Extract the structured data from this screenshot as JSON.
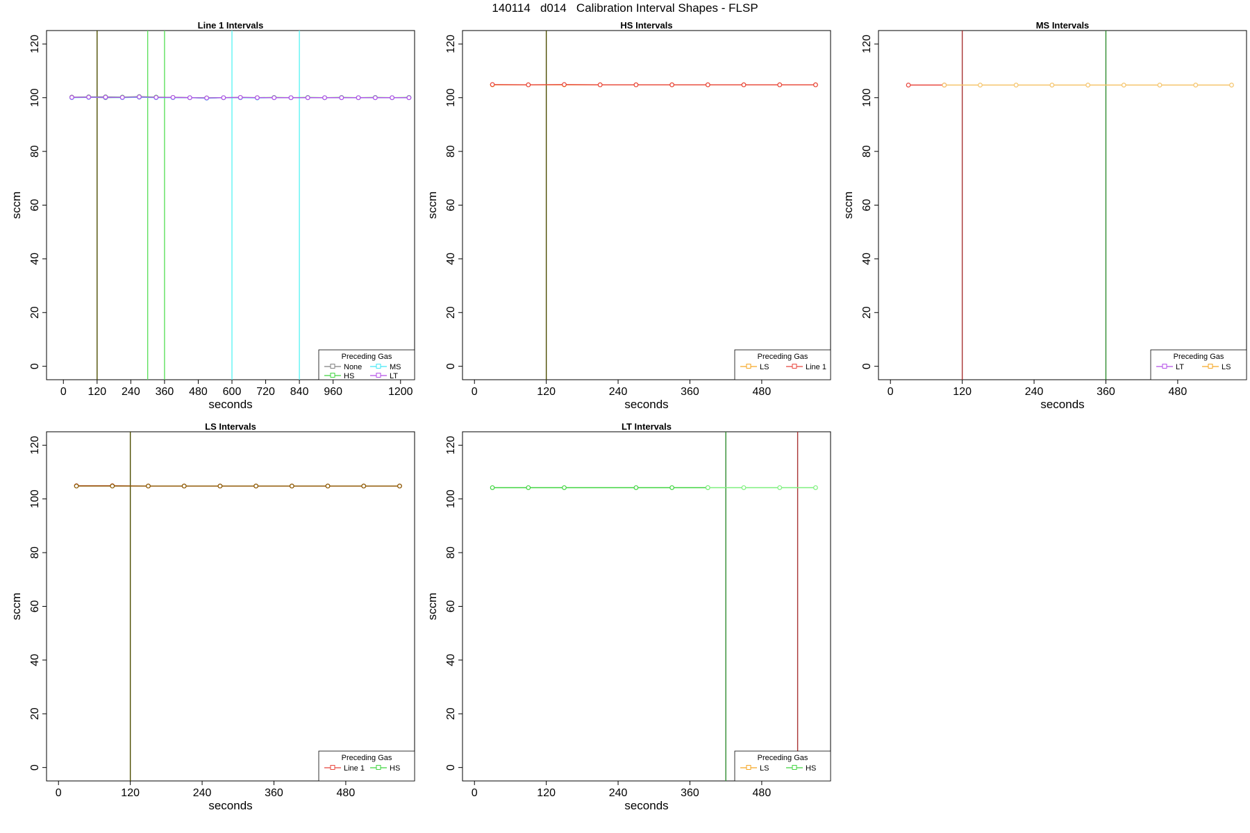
{
  "figure": {
    "title": "140114   d014   Calibration Interval Shapes - FLSP"
  },
  "chart_data": [
    {
      "type": "line",
      "title": "Line 1 Intervals",
      "xlabel": "seconds",
      "ylabel": "sccm",
      "xlim": [
        -60,
        1250
      ],
      "ylim": [
        -5,
        125
      ],
      "xticks": [
        0,
        120,
        240,
        360,
        480,
        600,
        720,
        840,
        960,
        1200
      ],
      "yticks": [
        0,
        20,
        40,
        60,
        80,
        100,
        120
      ],
      "vlines": [
        {
          "x": 120,
          "color": "#4d4d00"
        },
        {
          "x": 300,
          "color": "#5ee05e"
        },
        {
          "x": 360,
          "color": "#5ee05e"
        },
        {
          "x": 600,
          "color": "#5ff5f5"
        },
        {
          "x": 840,
          "color": "#5ff5f5"
        }
      ],
      "legend": {
        "title": "Preceding Gas",
        "position": "bottom-right",
        "columns": 2,
        "entries": [
          {
            "name": "None",
            "color": "#7f7f7f"
          },
          {
            "name": "MS",
            "color": "#3ee8f5"
          },
          {
            "name": "HS",
            "color": "#3fd43f"
          },
          {
            "name": "LT",
            "color": "#b44fe8"
          }
        ]
      },
      "series": [
        {
          "name": "None",
          "color": "#7f7f7f",
          "x": [
            30,
            90,
            150,
            210,
            270,
            330,
            390,
            450,
            510,
            570,
            630,
            690,
            750,
            810,
            870,
            930,
            990,
            1050,
            1110,
            1170,
            1230
          ],
          "y": [
            100.2,
            100.2,
            100.0,
            100.1,
            100.2,
            100.1,
            100.1,
            100.0,
            99.9,
            100.0,
            100.0,
            100.0,
            100.0,
            100.0,
            100.0,
            100.0,
            100.0,
            100.0,
            100.0,
            100.0,
            100.0
          ]
        },
        {
          "name": "HS",
          "color": "#3fd43f",
          "x": [
            30,
            90,
            150,
            210,
            270,
            330,
            390,
            450,
            510,
            570,
            630,
            690,
            750,
            810,
            870,
            930,
            990,
            1050,
            1110,
            1170,
            1230
          ],
          "y": [
            100.1,
            100.3,
            100.3,
            100.2,
            100.4,
            100.2,
            100.1,
            100.0,
            99.9,
            100.0,
            100.1,
            100.0,
            100.1,
            100.0,
            100.1,
            100.0,
            100.1,
            100.0,
            100.1,
            100.0,
            100.1
          ]
        },
        {
          "name": "MS",
          "color": "#3ee8f5",
          "x": [
            30,
            90,
            150,
            210,
            270,
            330,
            390,
            450,
            510,
            570,
            630,
            690,
            750,
            810,
            870,
            930,
            990,
            1050,
            1110,
            1170,
            1230
          ],
          "y": [
            100.0,
            100.1,
            100.1,
            100.0,
            100.2,
            100.0,
            100.0,
            100.0,
            99.8,
            100.0,
            100.0,
            99.9,
            100.0,
            100.0,
            100.0,
            100.0,
            100.0,
            100.0,
            100.0,
            100.0,
            100.0
          ]
        },
        {
          "name": "LT",
          "color": "#b44fe8",
          "x": [
            30,
            90,
            150,
            210,
            270,
            330,
            390,
            450,
            510,
            570,
            630,
            690,
            750,
            810,
            870,
            930,
            990,
            1050,
            1110,
            1170,
            1230
          ],
          "y": [
            100.1,
            100.2,
            100.2,
            100.1,
            100.3,
            100.1,
            100.1,
            100.0,
            99.9,
            100.0,
            100.1,
            100.0,
            100.0,
            100.0,
            100.0,
            100.0,
            100.0,
            100.0,
            100.0,
            100.0,
            100.0
          ]
        }
      ]
    },
    {
      "type": "line",
      "title": "HS Intervals",
      "xlabel": "seconds",
      "ylabel": "sccm",
      "xlim": [
        -20,
        595
      ],
      "ylim": [
        -5,
        125
      ],
      "xticks": [
        0,
        120,
        240,
        360,
        480
      ],
      "yticks": [
        0,
        20,
        40,
        60,
        80,
        100,
        120
      ],
      "vlines": [
        {
          "x": 120,
          "color": "#4d4d00"
        }
      ],
      "legend": {
        "title": "Preceding Gas",
        "position": "bottom-right",
        "columns": 2,
        "entries": [
          {
            "name": "LS",
            "color": "#f5a623"
          },
          {
            "name": "Line 1",
            "color": "#e8453c"
          }
        ]
      },
      "series": [
        {
          "name": "LS",
          "color": "#f5a623",
          "x": [
            30,
            90,
            150,
            210,
            270,
            330,
            390,
            450,
            510,
            570
          ],
          "y": [
            104.8,
            104.8,
            104.8,
            104.8,
            104.8,
            104.8,
            104.8,
            104.8,
            104.8,
            104.8
          ]
        },
        {
          "name": "Line 1",
          "color": "#e8453c",
          "x": [
            30,
            90,
            150,
            210,
            270,
            330,
            390,
            450,
            510,
            570
          ],
          "y": [
            104.9,
            104.8,
            104.9,
            104.8,
            104.8,
            104.8,
            104.8,
            104.8,
            104.8,
            104.8
          ]
        }
      ]
    },
    {
      "type": "line",
      "title": "MS Intervals",
      "xlabel": "seconds",
      "ylabel": "sccm",
      "xlim": [
        -20,
        595
      ],
      "ylim": [
        -5,
        125
      ],
      "xticks": [
        0,
        120,
        240,
        360,
        480
      ],
      "yticks": [
        0,
        20,
        40,
        60,
        80,
        100,
        120
      ],
      "vlines": [
        {
          "x": 120,
          "color": "#a83232"
        },
        {
          "x": 360,
          "color": "#2e8b2e"
        }
      ],
      "legend": {
        "title": "Preceding Gas",
        "position": "bottom-right",
        "columns": 2,
        "entries": [
          {
            "name": "LT",
            "color": "#b44fe8"
          },
          {
            "name": "LS",
            "color": "#f5a623"
          }
        ]
      },
      "series": [
        {
          "name": "LT",
          "color": "#e8453c",
          "x": [
            30,
            90
          ],
          "y": [
            104.7,
            104.7
          ]
        },
        {
          "name": "LS",
          "color": "#f5c46a",
          "x": [
            90,
            150,
            210,
            270,
            330,
            390,
            450,
            510,
            570
          ],
          "y": [
            104.7,
            104.7,
            104.7,
            104.7,
            104.7,
            104.7,
            104.7,
            104.7,
            104.7
          ]
        }
      ]
    },
    {
      "type": "line",
      "title": "LS Intervals",
      "xlabel": "seconds",
      "ylabel": "sccm",
      "xlim": [
        -20,
        595
      ],
      "ylim": [
        -5,
        125
      ],
      "xticks": [
        0,
        120,
        240,
        360,
        480
      ],
      "yticks": [
        0,
        20,
        40,
        60,
        80,
        100,
        120
      ],
      "vlines": [
        {
          "x": 120,
          "color": "#4d4d00"
        }
      ],
      "legend": {
        "title": "Preceding Gas",
        "position": "bottom-right",
        "columns": 2,
        "entries": [
          {
            "name": "Line 1",
            "color": "#e8453c"
          },
          {
            "name": "HS",
            "color": "#3fd43f"
          }
        ]
      },
      "series": [
        {
          "name": "Line 1",
          "color": "#c0392b",
          "x": [
            30,
            90,
            150,
            210,
            270,
            330,
            390,
            450,
            510,
            570
          ],
          "y": [
            104.9,
            104.9,
            104.8,
            104.8,
            104.8,
            104.8,
            104.8,
            104.8,
            104.8,
            104.8
          ]
        },
        {
          "name": "HS",
          "color": "#8b5a00",
          "x": [
            30,
            90,
            150,
            210,
            270,
            330,
            390,
            450,
            510,
            570
          ],
          "y": [
            104.8,
            104.8,
            104.8,
            104.8,
            104.8,
            104.8,
            104.8,
            104.8,
            104.8,
            104.8
          ]
        }
      ]
    },
    {
      "type": "line",
      "title": "LT Intervals",
      "xlabel": "seconds",
      "ylabel": "sccm",
      "xlim": [
        -20,
        595
      ],
      "ylim": [
        -5,
        125
      ],
      "xticks": [
        0,
        120,
        240,
        360,
        480
      ],
      "yticks": [
        0,
        20,
        40,
        60,
        80,
        100,
        120
      ],
      "vlines": [
        {
          "x": 420,
          "color": "#2e8b2e"
        },
        {
          "x": 540,
          "color": "#a83232"
        }
      ],
      "legend": {
        "title": "Preceding Gas",
        "position": "bottom-right",
        "columns": 2,
        "entries": [
          {
            "name": "LS",
            "color": "#f5a623"
          },
          {
            "name": "HS",
            "color": "#3fd43f"
          }
        ]
      },
      "series": [
        {
          "name": "HS",
          "color": "#3fd43f",
          "x": [
            30,
            90,
            150,
            270,
            330,
            390
          ],
          "y": [
            104.2,
            104.2,
            104.2,
            104.2,
            104.2,
            104.2
          ]
        },
        {
          "name": "LS",
          "color": "#7cf07c",
          "x": [
            390,
            450,
            510,
            570
          ],
          "y": [
            104.2,
            104.2,
            104.2,
            104.2
          ]
        }
      ]
    }
  ]
}
